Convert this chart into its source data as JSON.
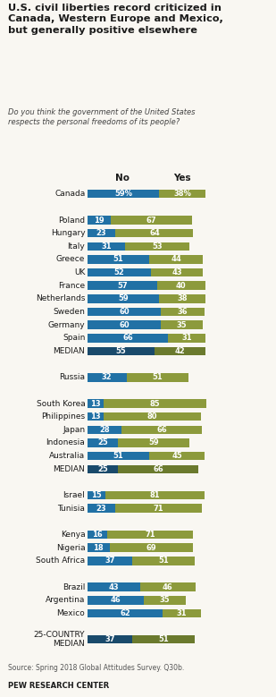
{
  "title": "U.S. civil liberties record criticized in\nCanada, Western Europe and Mexico,\nbut generally positive elsewhere",
  "subtitle": "Do you think the government of the United States\nrespects the personal freedoms of its people?",
  "source": "Source: Spring 2018 Global Attitudes Survey. Q30b.",
  "footer": "PEW RESEARCH CENTER",
  "col_no_label": "No",
  "col_yes_label": "Yes",
  "color_no": "#2171a5",
  "color_yes": "#8c9a3c",
  "color_median_no": "#1a4a6b",
  "color_median_yes": "#6b7a2e",
  "rows": [
    {
      "label": "Canada",
      "no": 59,
      "yes": 38,
      "is_median": false,
      "show_pct": true,
      "spacer": false
    },
    {
      "label": "",
      "no": null,
      "yes": null,
      "is_median": false,
      "show_pct": false,
      "spacer": true
    },
    {
      "label": "Poland",
      "no": 19,
      "yes": 67,
      "is_median": false,
      "show_pct": false,
      "spacer": false
    },
    {
      "label": "Hungary",
      "no": 23,
      "yes": 64,
      "is_median": false,
      "show_pct": false,
      "spacer": false
    },
    {
      "label": "Italy",
      "no": 31,
      "yes": 53,
      "is_median": false,
      "show_pct": false,
      "spacer": false
    },
    {
      "label": "Greece",
      "no": 51,
      "yes": 44,
      "is_median": false,
      "show_pct": false,
      "spacer": false
    },
    {
      "label": "UK",
      "no": 52,
      "yes": 43,
      "is_median": false,
      "show_pct": false,
      "spacer": false
    },
    {
      "label": "France",
      "no": 57,
      "yes": 40,
      "is_median": false,
      "show_pct": false,
      "spacer": false
    },
    {
      "label": "Netherlands",
      "no": 59,
      "yes": 38,
      "is_median": false,
      "show_pct": false,
      "spacer": false
    },
    {
      "label": "Sweden",
      "no": 60,
      "yes": 36,
      "is_median": false,
      "show_pct": false,
      "spacer": false
    },
    {
      "label": "Germany",
      "no": 60,
      "yes": 35,
      "is_median": false,
      "show_pct": false,
      "spacer": false
    },
    {
      "label": "Spain",
      "no": 66,
      "yes": 31,
      "is_median": false,
      "show_pct": false,
      "spacer": false
    },
    {
      "label": "MEDIAN",
      "no": 55,
      "yes": 42,
      "is_median": true,
      "show_pct": false,
      "spacer": false
    },
    {
      "label": "",
      "no": null,
      "yes": null,
      "is_median": false,
      "show_pct": false,
      "spacer": true
    },
    {
      "label": "Russia",
      "no": 32,
      "yes": 51,
      "is_median": false,
      "show_pct": false,
      "spacer": false
    },
    {
      "label": "",
      "no": null,
      "yes": null,
      "is_median": false,
      "show_pct": false,
      "spacer": true
    },
    {
      "label": "South Korea",
      "no": 13,
      "yes": 85,
      "is_median": false,
      "show_pct": false,
      "spacer": false
    },
    {
      "label": "Philippines",
      "no": 13,
      "yes": 80,
      "is_median": false,
      "show_pct": false,
      "spacer": false
    },
    {
      "label": "Japan",
      "no": 28,
      "yes": 66,
      "is_median": false,
      "show_pct": false,
      "spacer": false
    },
    {
      "label": "Indonesia",
      "no": 25,
      "yes": 59,
      "is_median": false,
      "show_pct": false,
      "spacer": false
    },
    {
      "label": "Australia",
      "no": 51,
      "yes": 45,
      "is_median": false,
      "show_pct": false,
      "spacer": false
    },
    {
      "label": "MEDIAN",
      "no": 25,
      "yes": 66,
      "is_median": true,
      "show_pct": false,
      "spacer": false
    },
    {
      "label": "",
      "no": null,
      "yes": null,
      "is_median": false,
      "show_pct": false,
      "spacer": true
    },
    {
      "label": "Israel",
      "no": 15,
      "yes": 81,
      "is_median": false,
      "show_pct": false,
      "spacer": false
    },
    {
      "label": "Tunisia",
      "no": 23,
      "yes": 71,
      "is_median": false,
      "show_pct": false,
      "spacer": false
    },
    {
      "label": "",
      "no": null,
      "yes": null,
      "is_median": false,
      "show_pct": false,
      "spacer": true
    },
    {
      "label": "Kenya",
      "no": 16,
      "yes": 71,
      "is_median": false,
      "show_pct": false,
      "spacer": false
    },
    {
      "label": "Nigeria",
      "no": 18,
      "yes": 69,
      "is_median": false,
      "show_pct": false,
      "spacer": false
    },
    {
      "label": "South Africa",
      "no": 37,
      "yes": 51,
      "is_median": false,
      "show_pct": false,
      "spacer": false
    },
    {
      "label": "",
      "no": null,
      "yes": null,
      "is_median": false,
      "show_pct": false,
      "spacer": true
    },
    {
      "label": "Brazil",
      "no": 43,
      "yes": 46,
      "is_median": false,
      "show_pct": false,
      "spacer": false
    },
    {
      "label": "Argentina",
      "no": 46,
      "yes": 35,
      "is_median": false,
      "show_pct": false,
      "spacer": false
    },
    {
      "label": "Mexico",
      "no": 62,
      "yes": 31,
      "is_median": false,
      "show_pct": false,
      "spacer": false
    },
    {
      "label": "",
      "no": null,
      "yes": null,
      "is_median": false,
      "show_pct": false,
      "spacer": true
    },
    {
      "label": "25-COUNTRY\nMEDIAN",
      "no": 37,
      "yes": 51,
      "is_median": true,
      "show_pct": false,
      "spacer": false
    }
  ],
  "background_color": "#f9f7f2",
  "text_color": "#1a1a1a",
  "label_fontsize": 6.5,
  "bar_fontsize": 6.0,
  "bar_height": 0.65
}
